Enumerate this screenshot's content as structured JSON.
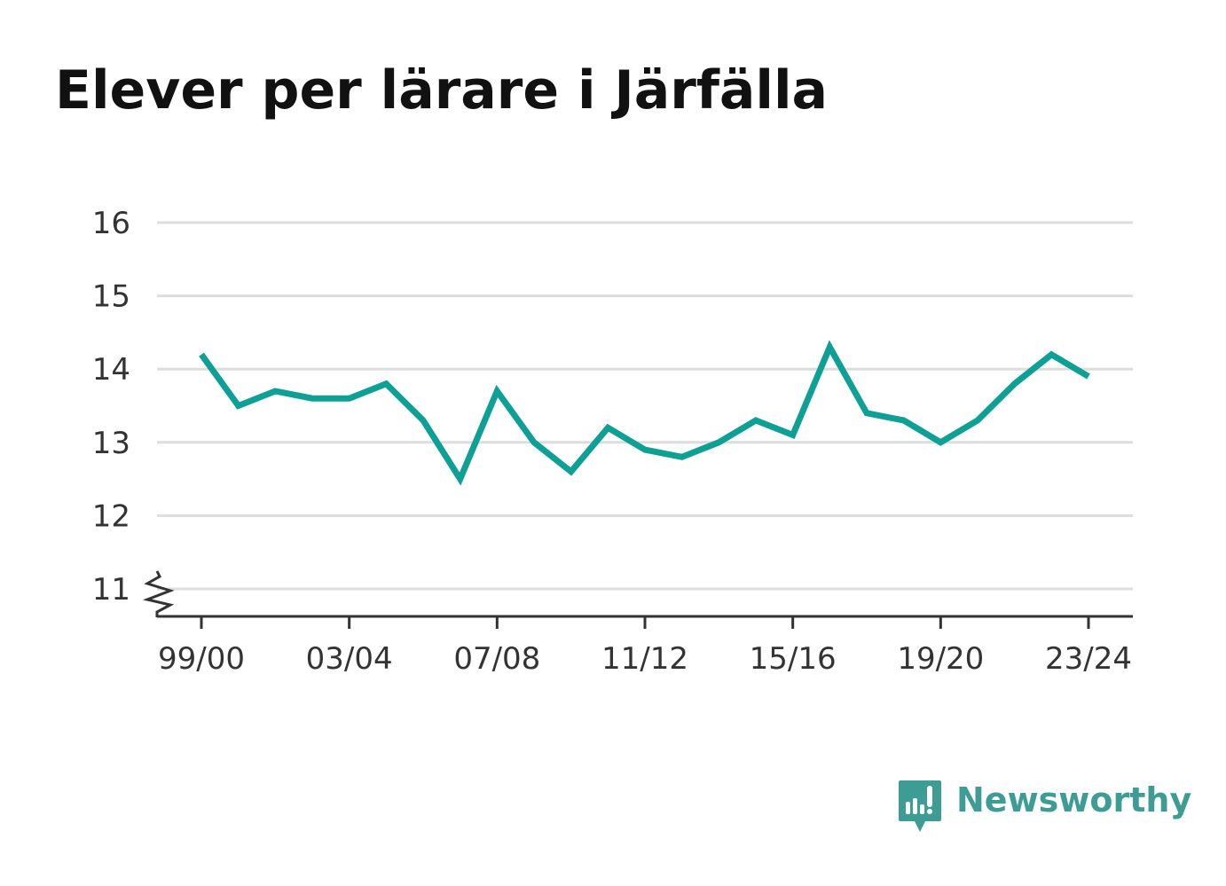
{
  "title": "Elever per lärare i Järfälla",
  "brand": {
    "name": "Newsworthy",
    "logo_icon": "bar-chart-speech-bubble-icon",
    "color": "#3d9c94"
  },
  "chart_data": {
    "type": "line",
    "title": "Elever per lärare i Järfälla",
    "xlabel": "",
    "ylabel": "",
    "x": [
      "99/00",
      "00/01",
      "01/02",
      "02/03",
      "03/04",
      "04/05",
      "05/06",
      "06/07",
      "07/08",
      "08/09",
      "09/10",
      "10/11",
      "11/12",
      "12/13",
      "13/14",
      "14/15",
      "15/16",
      "16/17",
      "17/18",
      "18/19",
      "19/20",
      "20/21",
      "21/22",
      "22/23",
      "23/24"
    ],
    "x_tick_labels": [
      "99/00",
      "03/04",
      "07/08",
      "11/12",
      "15/16",
      "19/20",
      "23/24"
    ],
    "y_ticks": [
      11,
      12,
      13,
      14,
      15,
      16
    ],
    "ylim": [
      10.6,
      16
    ],
    "y_axis_break": true,
    "grid": true,
    "series": [
      {
        "color": "#0fa095",
        "values": [
          14.2,
          13.5,
          13.7,
          13.6,
          13.6,
          13.8,
          13.3,
          12.5,
          13.7,
          13.0,
          12.6,
          13.2,
          12.9,
          12.8,
          13.0,
          13.3,
          13.1,
          14.3,
          13.4,
          13.3,
          13.0,
          13.3,
          13.8,
          14.2,
          13.9
        ]
      }
    ],
    "colors": {
      "grid": "#dddddd",
      "axis": "#333333",
      "text": "#333333"
    }
  }
}
